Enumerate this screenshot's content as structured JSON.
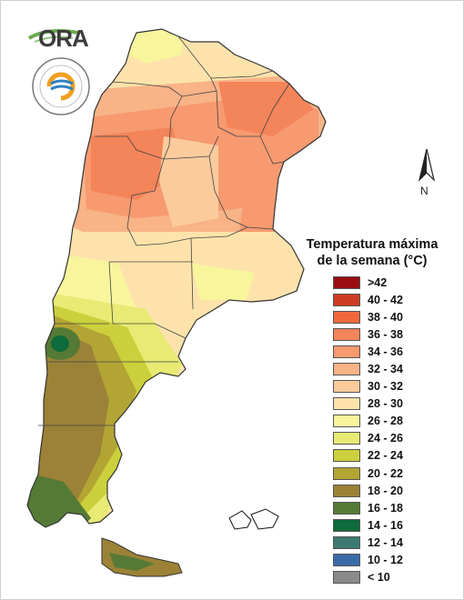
{
  "map": {
    "legend_title_line1": "Temperatura máxima",
    "legend_title_line2": "de la semana (°C)",
    "north_label": "N",
    "logo_text": "ORA",
    "legend": [
      {
        "label": ">42",
        "color": "#9b0d12"
      },
      {
        "label": "40 - 42",
        "color": "#cf3b22"
      },
      {
        "label": "38 - 40",
        "color": "#f2683d"
      },
      {
        "label": "36 - 38",
        "color": "#f4845a"
      },
      {
        "label": "34 - 36",
        "color": "#f79a70"
      },
      {
        "label": "32 - 34",
        "color": "#f8b387"
      },
      {
        "label": "30 - 32",
        "color": "#fbcb9c"
      },
      {
        "label": "28 - 30",
        "color": "#fde3ab"
      },
      {
        "label": "26 - 28",
        "color": "#f8f59d"
      },
      {
        "label": "24 - 26",
        "color": "#e8ea74"
      },
      {
        "label": "22 - 24",
        "color": "#ccd03c"
      },
      {
        "label": "20 - 22",
        "color": "#b3a534"
      },
      {
        "label": "18 - 20",
        "color": "#9b8236"
      },
      {
        "label": "16 - 18",
        "color": "#557a35"
      },
      {
        "label": "14 - 16",
        "color": "#0e6b3b"
      },
      {
        "label": "12 - 14",
        "color": "#3d7a72"
      },
      {
        "label": "10 - 12",
        "color": "#3a6aa6"
      },
      {
        "label": "< 10",
        "color": "#8a8a8a"
      }
    ]
  }
}
